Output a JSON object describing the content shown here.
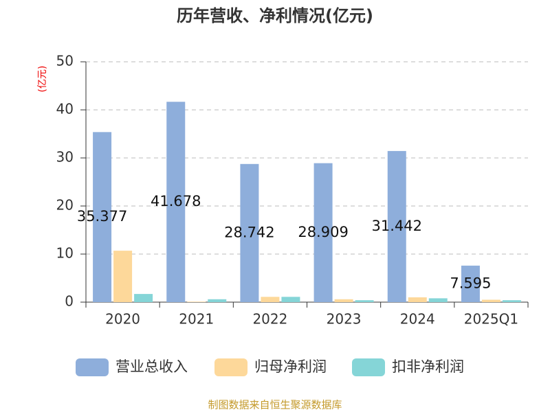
{
  "chart_data": {
    "type": "bar",
    "title": "历年营收、净利情况(亿元)",
    "y_label": "(亿元)",
    "categories": [
      "2020",
      "2021",
      "2022",
      "2023",
      "2024",
      "2025Q1"
    ],
    "series": [
      {
        "name": "营业总收入",
        "color": "#8eaedb",
        "values": [
          35.377,
          41.678,
          28.742,
          28.909,
          31.442,
          7.595
        ]
      },
      {
        "name": "归母净利润",
        "color": "#fdd89a",
        "values": [
          10.7,
          0.1,
          1.1,
          0.6,
          1.0,
          0.5
        ]
      },
      {
        "name": "扣非净利润",
        "color": "#85d5d7",
        "values": [
          1.7,
          0.6,
          1.1,
          0.4,
          0.8,
          0.4
        ]
      }
    ],
    "labeled_series": 0,
    "ylim": [
      0,
      50
    ],
    "yticks": [
      0,
      10,
      20,
      30,
      40,
      50
    ],
    "grid": true,
    "source": "制图数据来自恒生聚源数据库"
  }
}
